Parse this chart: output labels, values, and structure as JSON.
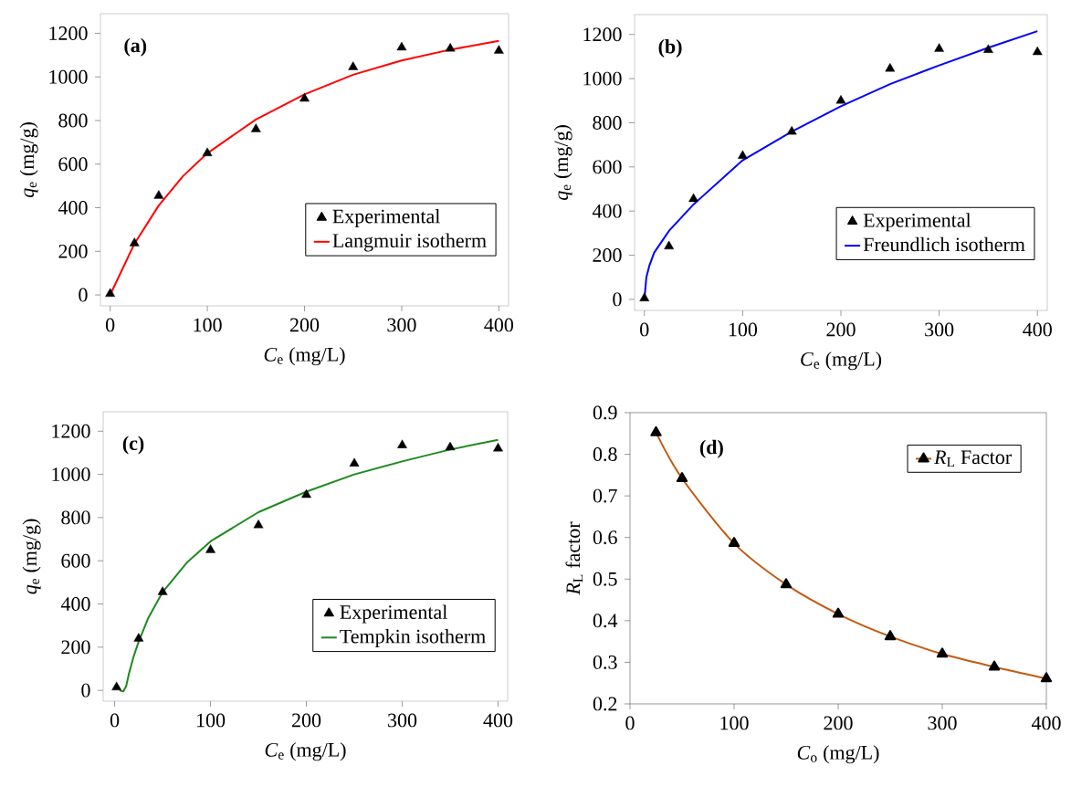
{
  "chart_data": [
    {
      "type": "scatter",
      "xlabel": "*C*$_{e}$ (mg/L)",
      "ylabel": "*q*$_{e}$ (mg/g)",
      "annotations": [
        "(a)"
      ],
      "xlim": [
        -10,
        410
      ],
      "ylim": [
        -50,
        1290
      ],
      "xticks": [
        0,
        100,
        200,
        300,
        400
      ],
      "yticks": [
        0,
        200,
        400,
        600,
        800,
        1000,
        1200
      ],
      "legend": "bottom right",
      "grid": false,
      "series": [
        {
          "name": "Experimental",
          "marker": "triangle",
          "color": "#000000",
          "x": [
            0,
            25,
            50,
            100,
            150,
            200,
            250,
            300,
            350,
            400
          ],
          "values": [
            5,
            237,
            455,
            650,
            760,
            900,
            1045,
            1135,
            1130,
            1120
          ]
        },
        {
          "name": "Langmuir  isotherm",
          "type": "line",
          "marker": "none",
          "color": "#ff0000",
          "x": [
            0,
            25,
            50,
            75,
            100,
            150,
            200,
            250,
            300,
            350,
            400
          ],
          "values": [
            0,
            235,
            410,
            545,
            650,
            805,
            920,
            1010,
            1075,
            1125,
            1165
          ]
        }
      ]
    },
    {
      "type": "scatter",
      "xlabel": "*C*$_{e}$ (mg/L)",
      "ylabel": "*q*$_{e}$ (mg/g)",
      "annotations": [
        "(b)"
      ],
      "xlim": [
        -10,
        410
      ],
      "ylim": [
        -50,
        1290
      ],
      "xticks": [
        0,
        100,
        200,
        300,
        400
      ],
      "yticks": [
        0,
        200,
        400,
        600,
        800,
        1000,
        1200
      ],
      "legend": "bottom right",
      "grid": false,
      "series": [
        {
          "name": "Experimental",
          "marker": "triangle",
          "color": "#000000",
          "x": [
            0,
            25,
            50,
            100,
            150,
            200,
            250,
            300,
            350,
            400
          ],
          "values": [
            5,
            240,
            455,
            650,
            760,
            900,
            1045,
            1135,
            1130,
            1120
          ]
        },
        {
          "name": "Freundlich  isotherm",
          "type": "line",
          "marker": "none",
          "color": "#0000ff",
          "x": [
            0,
            2,
            5,
            10,
            25,
            50,
            75,
            100,
            150,
            200,
            250,
            300,
            350,
            400
          ],
          "values": [
            0,
            100,
            152,
            212,
            310,
            430,
            530,
            630,
            760,
            875,
            975,
            1060,
            1140,
            1215
          ]
        }
      ]
    },
    {
      "type": "scatter",
      "xlabel": "*C*$_{e}$ (mg/L)",
      "ylabel": "*q*$_{e}$ (mg/g)",
      "annotations": [
        "(c)"
      ],
      "xlim": [
        -12,
        410
      ],
      "ylim": [
        -50,
        1290
      ],
      "xticks": [
        0,
        100,
        200,
        300,
        400
      ],
      "yticks": [
        0,
        200,
        400,
        600,
        800,
        1000,
        1200
      ],
      "legend": "bottom right",
      "grid": false,
      "series": [
        {
          "name": "Experimental",
          "marker": "triangle",
          "color": "#000000",
          "x": [
            2,
            25,
            50,
            100,
            150,
            200,
            250,
            300,
            350,
            400
          ],
          "values": [
            14,
            240,
            455,
            650,
            765,
            905,
            1050,
            1135,
            1125,
            1120
          ]
        },
        {
          "name": "Tempkin isotherm",
          "type": "line",
          "marker": "none",
          "color": "#1e8a1e",
          "x": [
            5,
            9,
            12,
            15,
            20,
            25,
            35,
            50,
            75,
            100,
            150,
            200,
            250,
            300,
            350,
            400
          ],
          "values": [
            0,
            -5,
            20,
            80,
            160,
            225,
            335,
            455,
            590,
            690,
            825,
            920,
            1000,
            1060,
            1115,
            1160
          ]
        }
      ]
    },
    {
      "type": "line",
      "xlabel": "*C*$_{o}$ (mg/L)",
      "ylabel": "*R*$_{L}$ factor",
      "annotations": [
        "(d)"
      ],
      "xlim": [
        0,
        400
      ],
      "ylim": [
        0.2,
        0.9
      ],
      "xticks": [
        0,
        100,
        200,
        300,
        400
      ],
      "yticks": [
        0.2,
        0.3,
        0.4,
        0.5,
        0.6,
        0.7,
        0.8,
        0.9
      ],
      "legend": "top right",
      "grid": false,
      "series": [
        {
          "name": "*R*$_{L}$ Factor",
          "marker": "triangle",
          "color": "#c55a11",
          "x": [
            25,
            50,
            100,
            150,
            200,
            250,
            300,
            350,
            400
          ],
          "values": [
            0.852,
            0.742,
            0.586,
            0.487,
            0.416,
            0.362,
            0.32,
            0.289,
            0.261
          ]
        }
      ]
    }
  ]
}
